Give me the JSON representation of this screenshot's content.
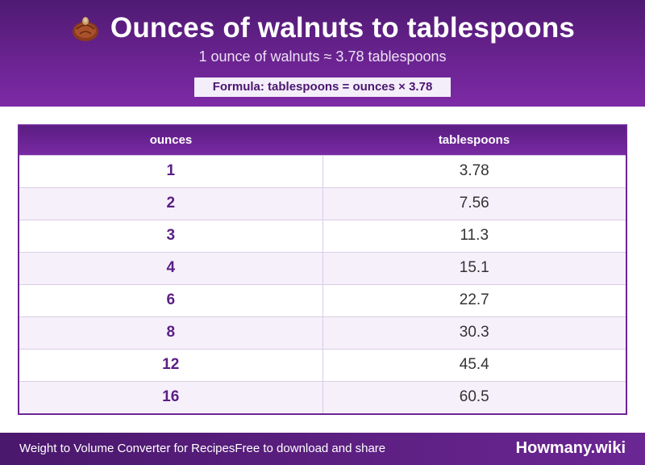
{
  "header": {
    "icon": "walnut-icon",
    "title": "Ounces of walnuts to tablespoons",
    "subtitle": "1 ounce of walnuts ≈ 3.78 tablespoons",
    "formula": "Formula: tablespoons = ounces × 3.78"
  },
  "table": {
    "columns": [
      "ounces",
      "tablespoons"
    ],
    "rows": [
      {
        "ounces": "1",
        "tablespoons": "3.78"
      },
      {
        "ounces": "2",
        "tablespoons": "7.56"
      },
      {
        "ounces": "3",
        "tablespoons": "11.3"
      },
      {
        "ounces": "4",
        "tablespoons": "15.1"
      },
      {
        "ounces": "6",
        "tablespoons": "22.7"
      },
      {
        "ounces": "8",
        "tablespoons": "30.3"
      },
      {
        "ounces": "12",
        "tablespoons": "45.4"
      },
      {
        "ounces": "16",
        "tablespoons": "60.5"
      }
    ]
  },
  "footer": {
    "left_text": "Weight to Volume Converter for Recipes",
    "middle_text": "Free to download and share",
    "brand": "Howmany.wiki"
  },
  "colors": {
    "header_purple": "#6a2390",
    "accent_purple": "#5a1e85",
    "row_alt": "#f6f0fb"
  }
}
